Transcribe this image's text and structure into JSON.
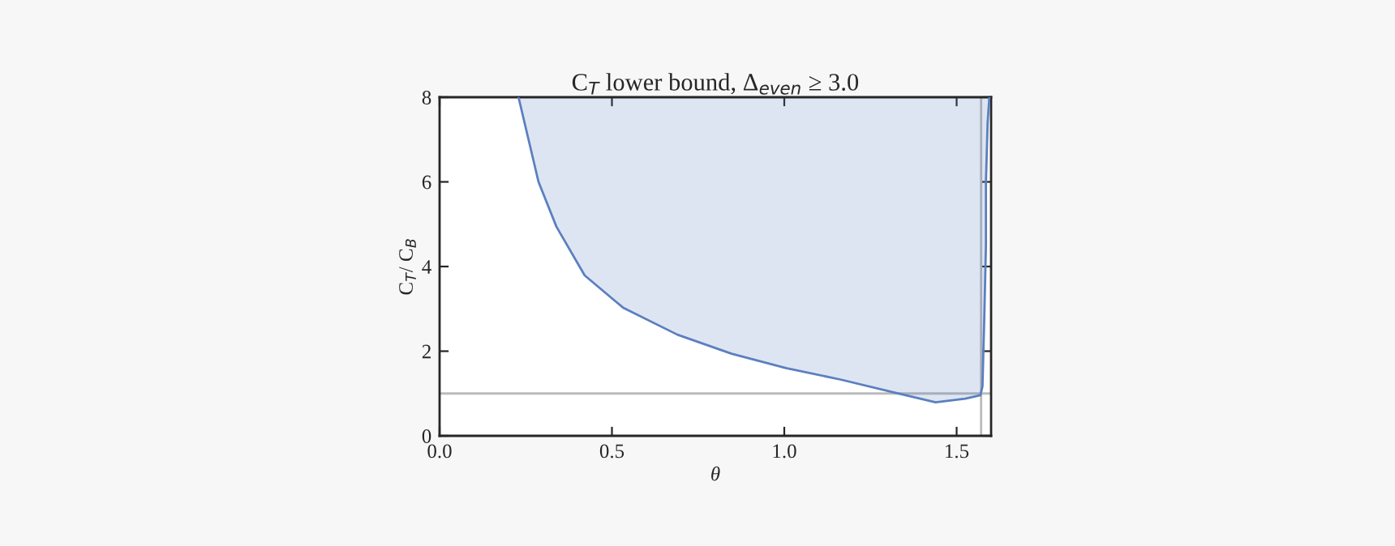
{
  "chart_data": {
    "type": "area",
    "title": "C$_{T}$ lower bound, Δ$_{even}$ ≥ 3.0",
    "xlabel": "θ",
    "ylabel": "C$_{T}$/ C$_{B}$",
    "series": [
      {
        "color": "#5b7fc0",
        "x": [
          0.229,
          0.287,
          0.339,
          0.421,
          0.532,
          0.69,
          0.847,
          1.005,
          1.163,
          1.32,
          1.439,
          1.525,
          1.569,
          1.575,
          1.58,
          1.585,
          1.585,
          1.59,
          1.595
        ],
        "values": [
          8,
          6.0,
          4.94,
          3.79,
          3.03,
          2.39,
          1.94,
          1.6,
          1.33,
          1.02,
          0.79,
          0.88,
          0.96,
          1.17,
          2.71,
          4.5,
          6.0,
          7.4,
          8
        ]
      }
    ],
    "ref_lines": [
      {
        "axis": "y",
        "value": 1,
        "color": "#bbbbbb"
      },
      {
        "axis": "x",
        "value": 1.571,
        "color": "#bbbbbb"
      }
    ],
    "xlim": [
      0,
      1.6
    ],
    "ylim": [
      0,
      8
    ],
    "xticks": [
      {
        "value": 0,
        "label": "0.0"
      },
      {
        "value": 0.5,
        "label": "0.5"
      },
      {
        "value": 1,
        "label": "1.0"
      },
      {
        "value": 1.5,
        "label": "1.5"
      }
    ],
    "yticks": [
      0,
      2,
      4,
      6,
      8
    ],
    "grid": false,
    "legend": false
  }
}
